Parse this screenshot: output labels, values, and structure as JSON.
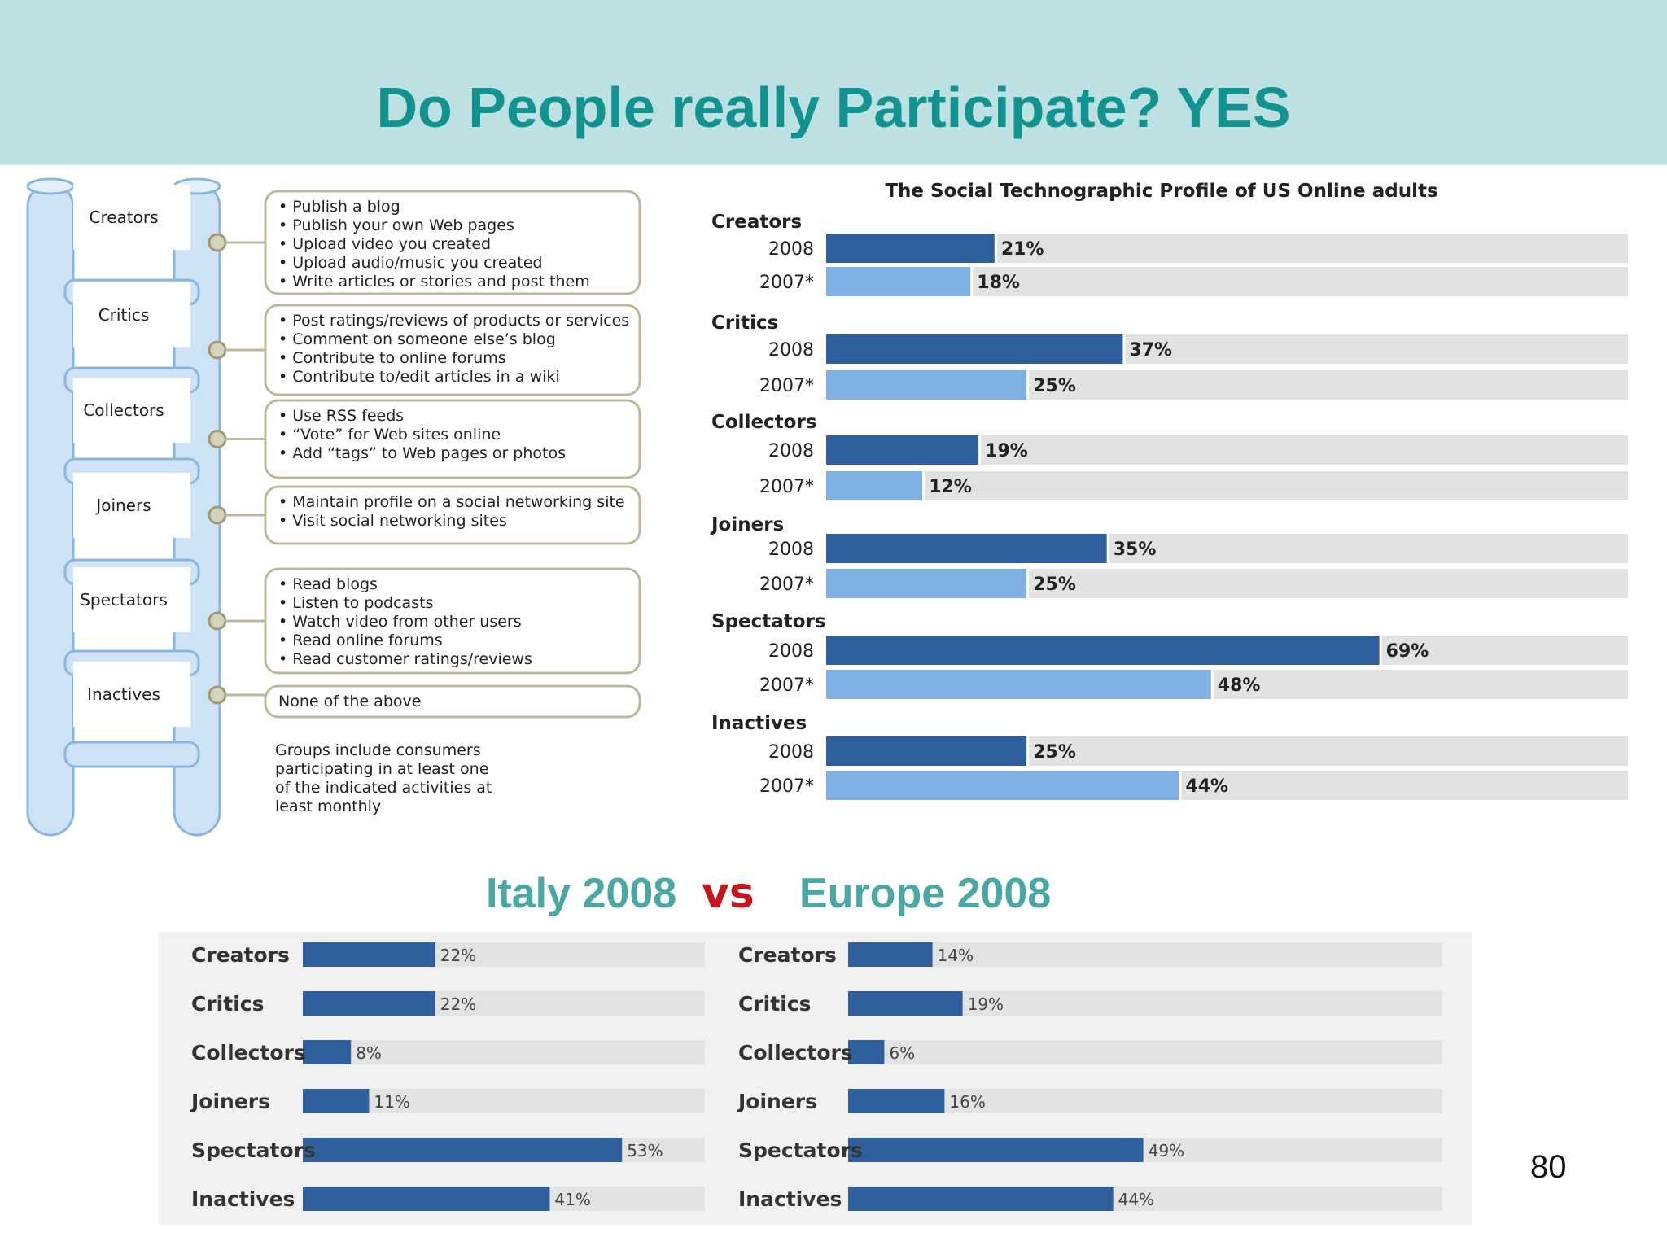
{
  "slide": {
    "title": "Do People really Participate? YES",
    "page_number": "80",
    "comparison": {
      "left": "Italy 2008",
      "vs": "vs",
      "right": "Europe 2008"
    }
  },
  "ladder": {
    "rungs": [
      {
        "name": "Creators",
        "activities": [
          "• Publish a blog",
          "• Publish your own Web pages",
          "• Upload video you created",
          "• Upload audio/music you created",
          "• Write articles or stories and post them"
        ]
      },
      {
        "name": "Critics",
        "activities": [
          "• Post ratings/reviews of products or services",
          "• Comment on someone else’s blog",
          "• Contribute to online forums",
          "• Contribute to/edit articles in a wiki"
        ]
      },
      {
        "name": "Collectors",
        "activities": [
          "• Use RSS feeds",
          "• “Vote” for Web sites online",
          "• Add “tags” to Web pages or photos"
        ]
      },
      {
        "name": "Joiners",
        "activities": [
          "• Maintain profile on a social networking site",
          "• Visit social networking sites"
        ]
      },
      {
        "name": "Spectators",
        "activities": [
          "• Read blogs",
          "• Listen to podcasts",
          "• Watch video from other users",
          "• Read online forums",
          "• Read customer ratings/reviews"
        ]
      },
      {
        "name": "Inactives",
        "activities": [
          "None of the above"
        ]
      }
    ],
    "note": [
      "Groups include consumers",
      "participating in at least one",
      "of the indicated activities at",
      "least monthly"
    ]
  },
  "colors": {
    "header_bg": "#bde1e3",
    "title": "#12938f",
    "comparison_title": "#4aa7a3",
    "vs": "#c4161c",
    "bar_dark": "#2f5f9c",
    "bar_light": "#7fb1e4",
    "bar_track": "#e2e2e2",
    "ladder_fill": "#cfe3f7",
    "ladder_stroke": "#8ab6e0",
    "box_stroke": "#bdb69a"
  },
  "chart_data": [
    {
      "type": "bar",
      "orientation": "horizontal",
      "title": "The Social Technographic Profile of US Online adults",
      "categories": [
        "Creators",
        "Critics",
        "Collectors",
        "Joiners",
        "Spectators",
        "Inactives"
      ],
      "series": [
        {
          "name": "2008",
          "values": [
            21,
            37,
            19,
            35,
            69,
            25
          ],
          "labels": [
            "21%",
            "37%",
            "19%",
            "35%",
            "69%",
            "25%"
          ]
        },
        {
          "name": "2007*",
          "values": [
            18,
            25,
            12,
            25,
            48,
            44
          ],
          "labels": [
            "18%",
            "25%",
            "12%",
            "25%",
            "48%",
            "44%"
          ]
        }
      ],
      "xlim": [
        0,
        100
      ],
      "unit": "%"
    },
    {
      "type": "bar",
      "orientation": "horizontal",
      "categories": [
        "Creators",
        "Critics",
        "Collectors",
        "Joiners",
        "Spectators",
        "Inactives"
      ],
      "values": [
        22,
        22,
        8,
        11,
        53,
        41
      ],
      "labels": [
        "22%",
        "22%",
        "8%",
        "11%",
        "53%",
        "41%"
      ],
      "xlim": [
        0,
        100
      ],
      "unit": "%"
    },
    {
      "type": "bar",
      "orientation": "horizontal",
      "categories": [
        "Creators",
        "Critics",
        "Collectors",
        "Joiners",
        "Spectators",
        "Inactives"
      ],
      "values": [
        14,
        19,
        6,
        16,
        49,
        44
      ],
      "labels": [
        "14%",
        "19%",
        "6%",
        "16%",
        "49%",
        "44%"
      ],
      "xlim": [
        0,
        100
      ],
      "unit": "%"
    }
  ]
}
